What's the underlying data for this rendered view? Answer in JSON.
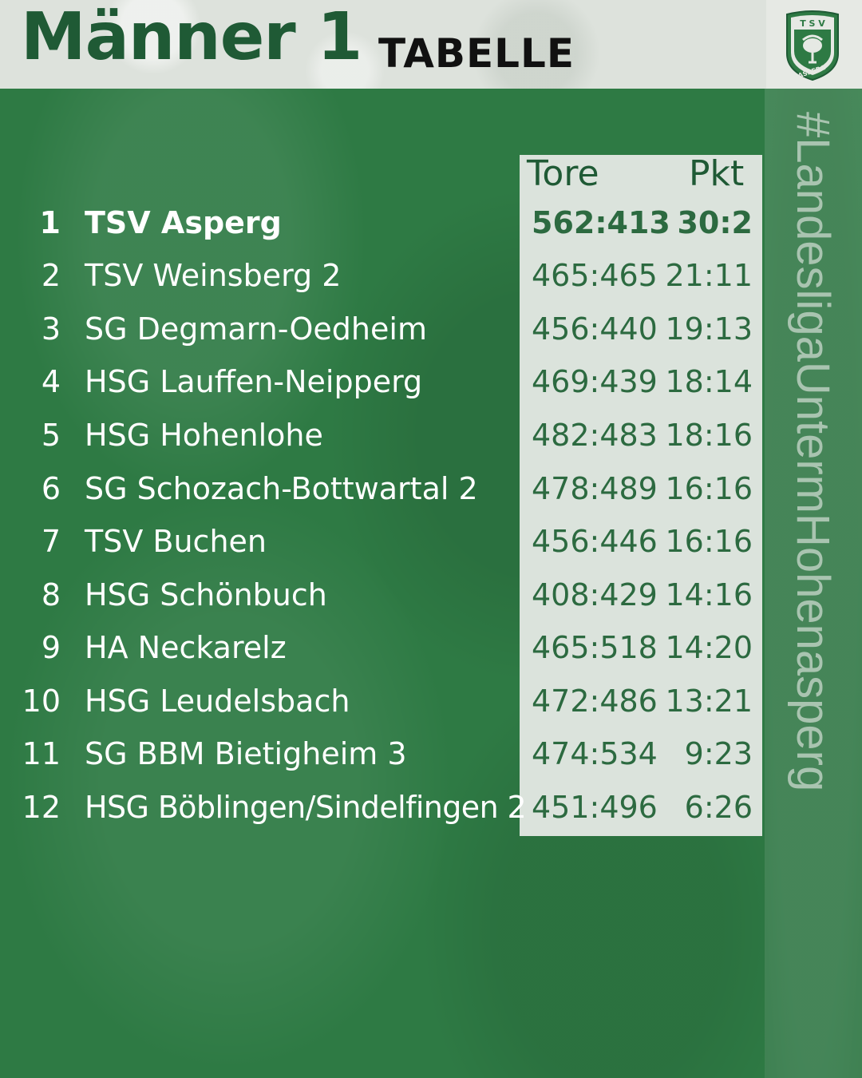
{
  "header": {
    "title": "Männer 1",
    "subtitle": "TABELLE"
  },
  "logo": {
    "icon": "tsv-asperg-crest-icon",
    "text_top": "T S V",
    "text_bottom": "ASPERG"
  },
  "hashtag": "#LandesligaUntermHohenasperg",
  "columns": {
    "goals": "Tore",
    "points": "Pkt"
  },
  "colors": {
    "green": "#2e7a44",
    "dark_green": "#1f5a35",
    "panel": "#dbe3dc"
  },
  "standings": [
    {
      "rank": "1",
      "team": "TSV Asperg",
      "goals": "562:413",
      "points": "30:2"
    },
    {
      "rank": "2",
      "team": "TSV Weinsberg 2",
      "goals": "465:465",
      "points": "21:11"
    },
    {
      "rank": "3",
      "team": "SG Degmarn-Oedheim",
      "goals": "456:440",
      "points": "19:13"
    },
    {
      "rank": "4",
      "team": "HSG Lauffen-Neipperg",
      "goals": "469:439",
      "points": "18:14"
    },
    {
      "rank": "5",
      "team": "HSG Hohenlohe",
      "goals": "482:483",
      "points": "18:16"
    },
    {
      "rank": "6",
      "team": "SG Schozach-Bottwartal 2",
      "goals": "478:489",
      "points": "16:16"
    },
    {
      "rank": "7",
      "team": "TSV Buchen",
      "goals": "456:446",
      "points": "16:16"
    },
    {
      "rank": "8",
      "team": "HSG Schönbuch",
      "goals": "408:429",
      "points": "14:16"
    },
    {
      "rank": "9",
      "team": "HA Neckarelz",
      "goals": "465:518",
      "points": "14:20"
    },
    {
      "rank": "10",
      "team": "HSG Leudelsbach",
      "goals": "472:486",
      "points": "13:21"
    },
    {
      "rank": "11",
      "team": "SG BBM Bietigheim 3",
      "goals": "474:534",
      "points": "9:23"
    },
    {
      "rank": "12",
      "team": "HSG Böblingen/Sindelfingen 2",
      "goals": "451:496",
      "points": "6:26"
    }
  ]
}
